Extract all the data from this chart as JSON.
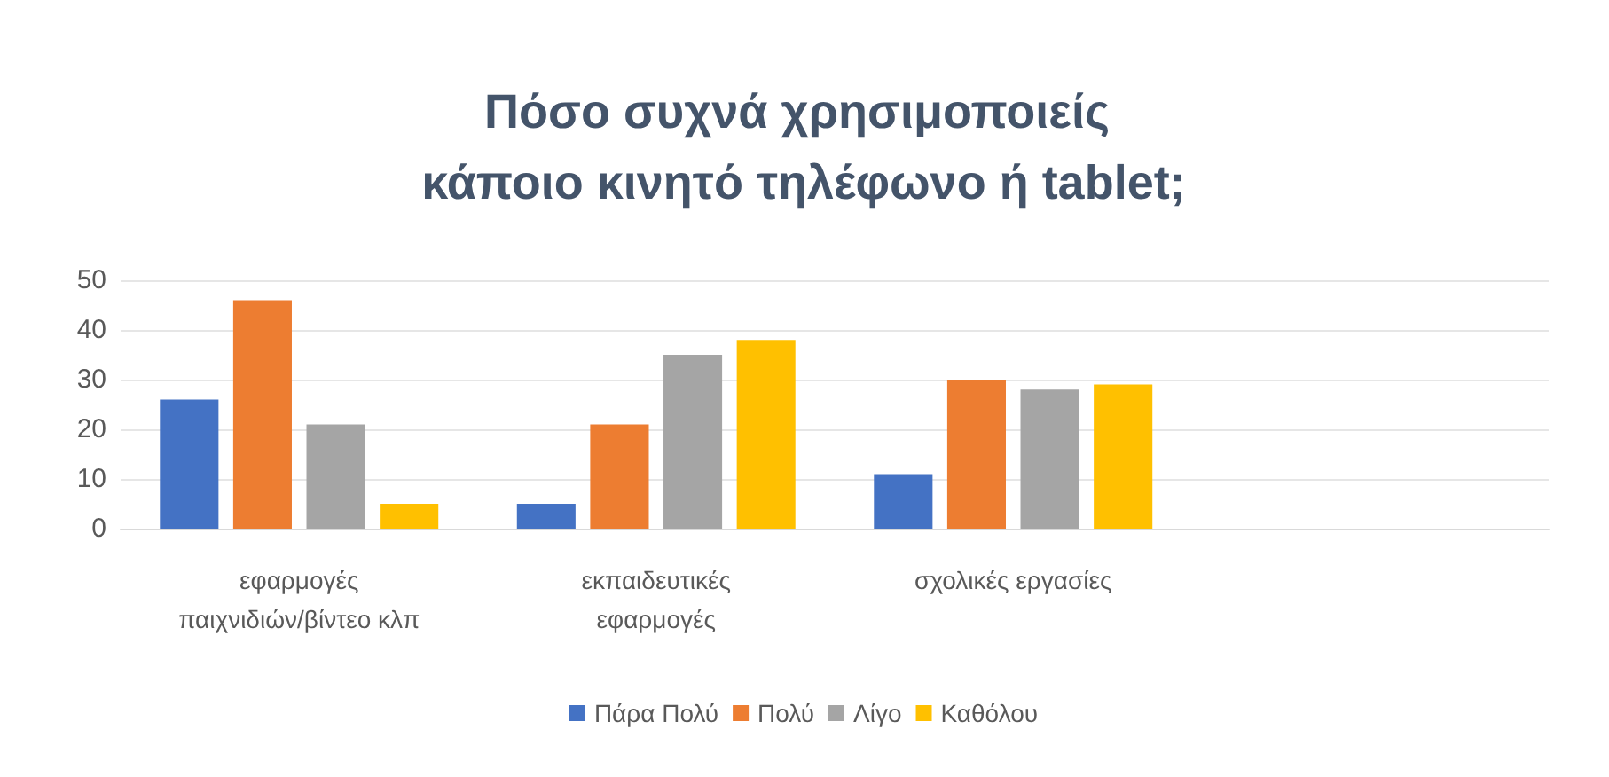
{
  "chart_data": {
    "type": "bar",
    "title": "Πόσο συχνά χρησιμοποιείς κάποιο κινητό τηλέφωνο ή tablet;",
    "categories": [
      "εφαρμογές\nπαιχνιδιών/βίντεο κλπ",
      "εκπαιδευτικές\nεφαρμογές",
      "σχολικές εργασίες",
      null
    ],
    "series": [
      {
        "name": "Πάρα Πολύ",
        "color": "#4472c4",
        "values": [
          26,
          5,
          11,
          null
        ]
      },
      {
        "name": "Πολύ",
        "color": "#ed7d31",
        "values": [
          46,
          21,
          30,
          null
        ]
      },
      {
        "name": "Λίγο",
        "color": "#a5a5a5",
        "values": [
          21,
          35,
          28,
          null
        ]
      },
      {
        "name": "Καθόλου",
        "color": "#ffc000",
        "values": [
          5,
          38,
          29,
          null
        ]
      }
    ],
    "ylim": [
      0,
      50
    ],
    "yticks": [
      0,
      10,
      20,
      30,
      40,
      50
    ],
    "grid": "y",
    "legend": "bottom"
  }
}
